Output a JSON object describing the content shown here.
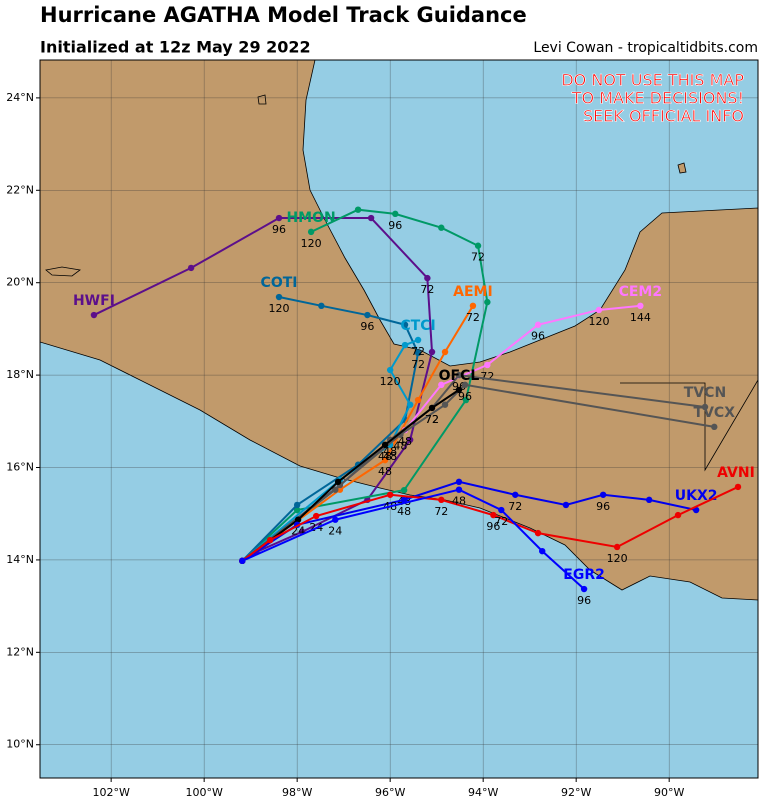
{
  "chart_data": {
    "type": "track_map",
    "title": "Hurricane AGATHA Model Track Guidance",
    "subtitle": "Initialized at 12z May 29 2022",
    "credit": "Levi Cowan - tropicaltidbits.com",
    "warning": [
      "DO NOT USE THIS MAP",
      "TO MAKE DECISIONS!",
      "SEEK OFFICIAL INFO"
    ],
    "xlim": [
      -103.53,
      -88.09
    ],
    "ylim": [
      9.28,
      24.82
    ],
    "xticks": [
      {
        "value": -102,
        "label": "102°W"
      },
      {
        "value": -100,
        "label": "100°W"
      },
      {
        "value": -98,
        "label": "98°W"
      },
      {
        "value": -96,
        "label": "96°W"
      },
      {
        "value": -94,
        "label": "94°W"
      },
      {
        "value": -92,
        "label": "92°W"
      },
      {
        "value": -90,
        "label": "90°W"
      }
    ],
    "yticks": [
      {
        "value": 10,
        "label": "10°N"
      },
      {
        "value": 12,
        "label": "12°N"
      },
      {
        "value": 14,
        "label": "14°N"
      },
      {
        "value": 16,
        "label": "16°N"
      },
      {
        "value": 18,
        "label": "18°N"
      },
      {
        "value": 20,
        "label": "20°N"
      },
      {
        "value": 22,
        "label": "22°N"
      },
      {
        "value": 24,
        "label": "24°N"
      }
    ],
    "grid": true,
    "series": [
      {
        "name": "HWFI",
        "color": "#5c0f8b",
        "lon": [
          -99.18,
          -98.88,
          -97.89,
          -96.49,
          -95.57,
          -95.1,
          -95.2,
          -96.41,
          -98.39,
          -100.28,
          -102.37
        ],
        "lat": [
          13.98,
          14.17,
          14.61,
          15.3,
          16.6,
          18.5,
          20.1,
          21.4,
          21.4,
          20.32,
          19.3
        ],
        "hours": [
          null,
          null,
          null,
          null,
          null,
          null,
          72,
          null,
          96,
          null,
          null
        ]
      },
      {
        "name": "HMON",
        "color": "#009966",
        "lon": [
          -99.18,
          -98.0,
          -95.7,
          -94.37,
          -93.91,
          -94.11,
          -94.9,
          -95.89,
          -96.69,
          -97.7
        ],
        "lat": [
          13.98,
          15.08,
          15.51,
          17.46,
          19.58,
          20.8,
          21.19,
          21.49,
          21.58,
          21.1
        ],
        "hours": [
          null,
          null,
          48,
          null,
          null,
          72,
          null,
          96,
          null,
          120
        ]
      },
      {
        "name": "COTI",
        "color": "#006699",
        "lon": [
          -99.18,
          -98.0,
          -96.69,
          -95.68,
          -95.4,
          -95.68,
          -96.49,
          -97.48,
          -98.39
        ],
        "lat": [
          13.98,
          15.19,
          16.06,
          17.03,
          18.48,
          19.09,
          19.3,
          19.5,
          19.69
        ],
        "hours": [
          null,
          null,
          null,
          null,
          72,
          null,
          96,
          null,
          120
        ]
      },
      {
        "name": "AEMI",
        "color": "#ff6600",
        "lon": [
          -99.18,
          -97.08,
          -96.11,
          -95.4,
          -94.82,
          -94.22
        ],
        "lat": [
          13.98,
          15.52,
          16.16,
          17.46,
          18.5,
          19.5
        ],
        "hours": [
          null,
          null,
          48,
          null,
          null,
          72
        ]
      },
      {
        "name": "CEM2",
        "color": "#ff77ff",
        "lon": [
          -99.18,
          -97.08,
          -95.68,
          -94.9,
          -93.91,
          -92.82,
          -91.51,
          -90.62
        ],
        "lat": [
          13.98,
          15.62,
          16.81,
          17.79,
          18.22,
          19.09,
          19.41,
          19.5
        ],
        "hours": [
          null,
          null,
          48,
          null,
          72,
          96,
          120,
          144
        ]
      },
      {
        "name": "CTCI",
        "color": "#0099cc",
        "lon": [
          -99.18,
          -97.08,
          -96.0,
          -95.57,
          -96.0,
          -95.68,
          -95.4
        ],
        "lat": [
          13.98,
          15.73,
          16.49,
          17.36,
          18.11,
          18.65,
          18.76
        ],
        "hours": [
          null,
          null,
          48,
          null,
          120,
          null,
          72
        ]
      },
      {
        "name": "TVCN",
        "color": "#555555",
        "lon": [
          -99.18,
          -97.18,
          -96.0,
          -95.1,
          -94.52,
          -89.23
        ],
        "lat": [
          13.98,
          15.52,
          16.6,
          17.29,
          18.0,
          17.31
        ],
        "hours": [
          null,
          null,
          48,
          72,
          96,
          null
        ]
      },
      {
        "name": "TVCX",
        "color": "#555555",
        "lon": [
          -99.18,
          -97.08,
          -95.78,
          -94.82,
          -94.39,
          -89.03
        ],
        "lat": [
          13.98,
          15.62,
          16.71,
          17.36,
          17.79,
          16.88
        ],
        "hours": [
          null,
          null,
          48,
          null,
          96,
          null
        ]
      },
      {
        "name": "OFCL",
        "color": "#000000",
        "lon": [
          -99.18,
          -97.98,
          -97.12,
          -96.11,
          -95.1,
          -94.52
        ],
        "lat": [
          13.98,
          14.87,
          15.69,
          16.49,
          17.29,
          17.68
        ],
        "hours": [
          null,
          24,
          null,
          48,
          72,
          null
        ]
      },
      {
        "name": "UKX2",
        "color": "#0000ee",
        "lon": [
          -99.18,
          -98.0,
          -95.7,
          -94.52,
          -93.31,
          -92.22,
          -91.42,
          -90.43,
          -89.42
        ],
        "lat": [
          13.98,
          14.76,
          15.3,
          15.69,
          15.41,
          15.19,
          15.41,
          15.3,
          15.08
        ],
        "hours": [
          null,
          null,
          48,
          null,
          72,
          null,
          96,
          null,
          null
        ]
      },
      {
        "name": "AVNI",
        "color": "#ee0000",
        "lon": [
          -99.18,
          -98.58,
          -97.59,
          -96.0,
          -94.9,
          -93.78,
          -92.82,
          -91.12,
          -89.81,
          -88.52
        ],
        "lat": [
          13.98,
          14.43,
          14.95,
          15.41,
          15.3,
          14.97,
          14.58,
          14.28,
          14.97,
          15.58
        ],
        "hours": [
          null,
          null,
          24,
          48,
          72,
          96,
          null,
          120,
          null,
          null
        ]
      },
      {
        "name": "EGR2",
        "color": "#0000ff",
        "lon": [
          -99.18,
          -97.18,
          -94.52,
          -93.61,
          -92.73,
          -91.83
        ],
        "lat": [
          13.98,
          14.87,
          15.52,
          15.08,
          14.19,
          13.37
        ],
        "hours": [
          null,
          24,
          48,
          72,
          null,
          96
        ]
      }
    ]
  }
}
